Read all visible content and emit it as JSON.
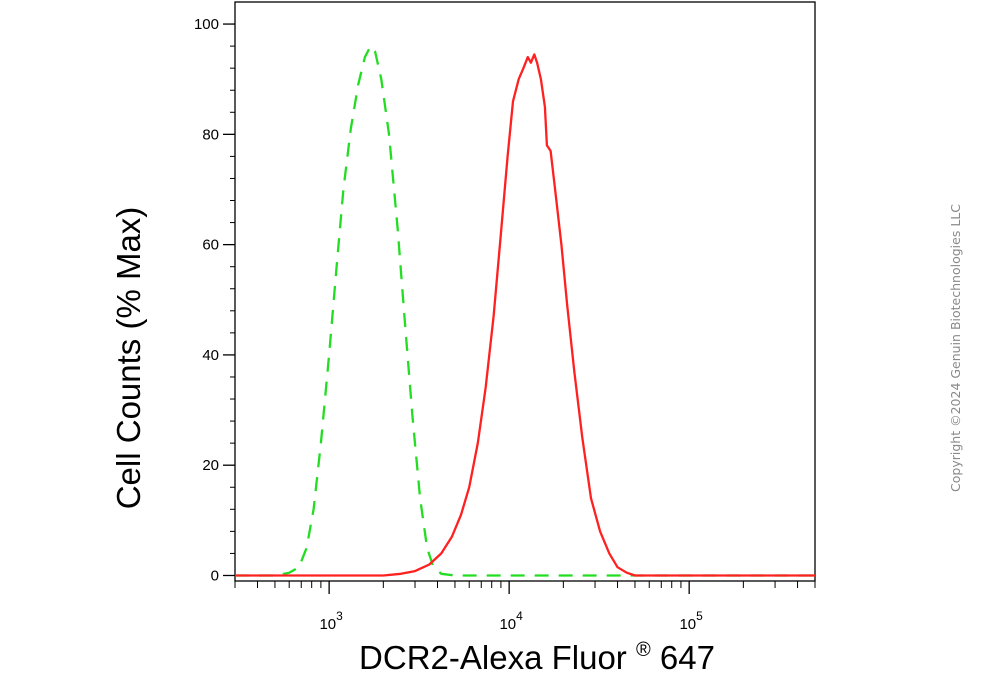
{
  "chart_data": {
    "type": "line",
    "xlabel_main": "DCR2-Alexa Fluor",
    "xlabel_sup": "®",
    "xlabel_tail": " 647",
    "ylabel": "Cell Counts (% Max)",
    "x_scale": "log",
    "xlim": [
      300,
      500000
    ],
    "ylim": [
      -1,
      104
    ],
    "y_ticks": [
      0,
      20,
      40,
      60,
      80,
      100
    ],
    "x_ticks": [
      {
        "value": 1000,
        "base": "10",
        "exp": "3"
      },
      {
        "value": 10000,
        "base": "10",
        "exp": "4"
      },
      {
        "value": 100000,
        "base": "10",
        "exp": "5"
      }
    ],
    "grid": false,
    "series": [
      {
        "color": "#22dd22",
        "style": "dashed",
        "points": [
          [
            300,
            0
          ],
          [
            500,
            0
          ],
          [
            600,
            0.5
          ],
          [
            680,
            1.5
          ],
          [
            750,
            5
          ],
          [
            820,
            12
          ],
          [
            900,
            24
          ],
          [
            1000,
            40
          ],
          [
            1100,
            56
          ],
          [
            1200,
            70
          ],
          [
            1320,
            81
          ],
          [
            1450,
            89
          ],
          [
            1580,
            94
          ],
          [
            1700,
            96
          ],
          [
            1800,
            95
          ],
          [
            1950,
            90
          ],
          [
            2150,
            80
          ],
          [
            2400,
            63
          ],
          [
            2650,
            45
          ],
          [
            2900,
            29
          ],
          [
            3200,
            14
          ],
          [
            3500,
            5
          ],
          [
            3800,
            1.5
          ],
          [
            4200,
            0.3
          ],
          [
            5000,
            0
          ],
          [
            500000,
            0
          ]
        ]
      },
      {
        "color": "#ff2020",
        "style": "solid",
        "points": [
          [
            300,
            0
          ],
          [
            2000,
            0
          ],
          [
            2500,
            0.3
          ],
          [
            3000,
            0.8
          ],
          [
            3600,
            2
          ],
          [
            4200,
            4
          ],
          [
            4800,
            7
          ],
          [
            5400,
            11
          ],
          [
            6000,
            16
          ],
          [
            6700,
            24
          ],
          [
            7400,
            34
          ],
          [
            8200,
            47
          ],
          [
            9000,
            62
          ],
          [
            9800,
            76
          ],
          [
            10500,
            86
          ],
          [
            11300,
            90
          ],
          [
            12000,
            92
          ],
          [
            12700,
            94
          ],
          [
            13200,
            93
          ],
          [
            13800,
            94.5
          ],
          [
            14300,
            93
          ],
          [
            15000,
            90
          ],
          [
            15800,
            85
          ],
          [
            16200,
            78
          ],
          [
            17000,
            77
          ],
          [
            18000,
            70
          ],
          [
            19500,
            60
          ],
          [
            21000,
            49
          ],
          [
            23000,
            37
          ],
          [
            25500,
            25
          ],
          [
            28500,
            14
          ],
          [
            32000,
            8
          ],
          [
            36000,
            4
          ],
          [
            40000,
            1.5
          ],
          [
            45000,
            0.5
          ],
          [
            50000,
            0
          ],
          [
            500000,
            0
          ]
        ]
      }
    ]
  },
  "copyright": "Copyright ©2024 Genuin Biotechnologies LLC"
}
